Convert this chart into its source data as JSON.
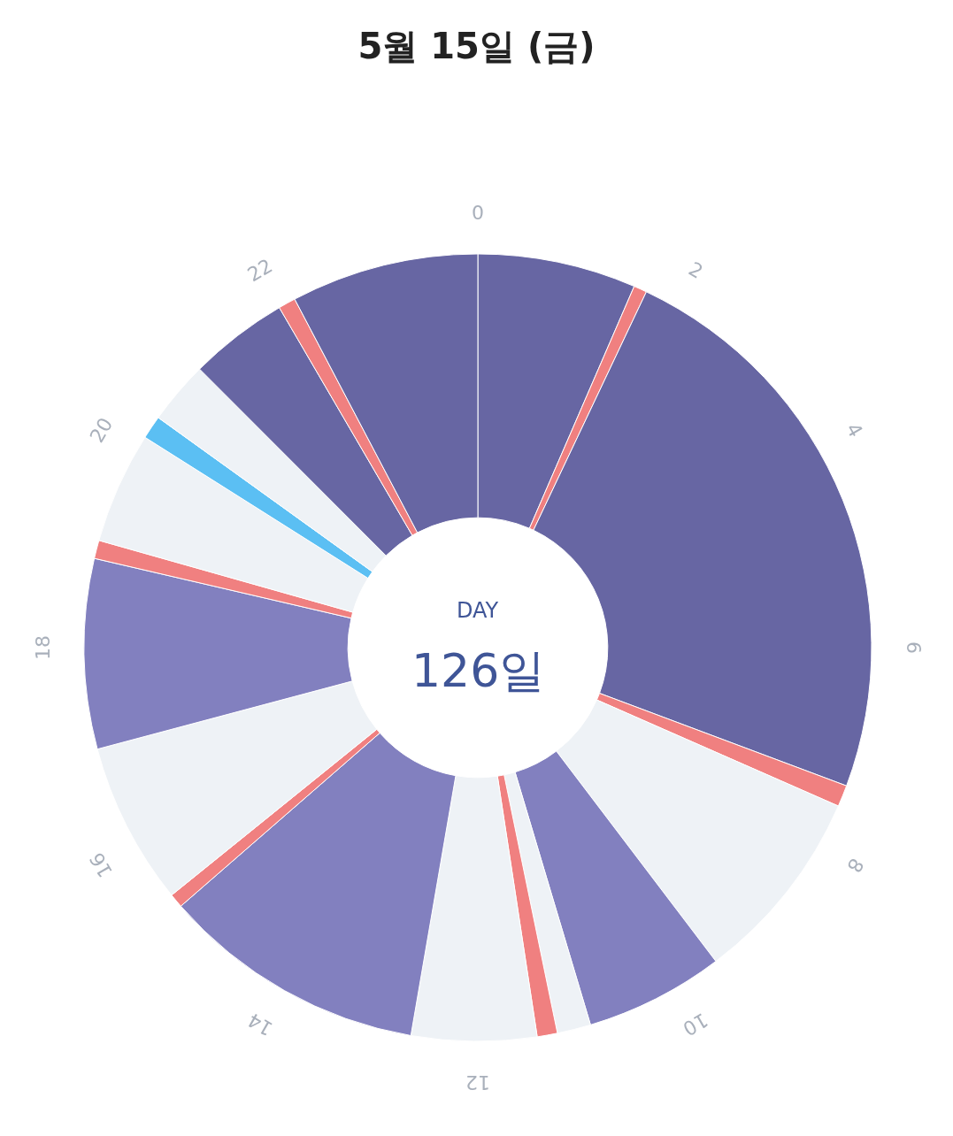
{
  "chart_data": {
    "type": "donut",
    "title": "5월 15일 (금)",
    "categories": [
      null,
      null,
      null,
      null,
      null,
      null,
      null,
      null,
      null,
      null,
      null,
      null,
      null,
      null,
      null,
      null,
      null,
      null,
      null,
      null
    ],
    "values": [
      6.5,
      0.54,
      23.67,
      0.88,
      8.08,
      5.71,
      1.38,
      0.83,
      5.13,
      10.88,
      0.58,
      6.67,
      7.79,
      0.75,
      4.58,
      0.96,
      2.58,
      4.08,
      0.71,
      7.7
    ],
    "colors": [
      "#6766a3",
      "#f08080",
      "#6766a3",
      "#f08080",
      "#eef2f6",
      "#8280bf",
      "#eef2f6",
      "#f08080",
      "#eef2f6",
      "#8280bf",
      "#f08080",
      "#eef2f6",
      "#8280bf",
      "#f08080",
      "#eef2f6",
      "#5bbff3",
      "#eef2f6",
      "#6766a3",
      "#f08080",
      "#6766a3"
    ],
    "annotations": [
      "DAY",
      "126일",
      "0",
      "2",
      "4",
      "6",
      "8",
      "10",
      "12",
      "14",
      "16",
      "18",
      "20",
      "22"
    ]
  }
}
